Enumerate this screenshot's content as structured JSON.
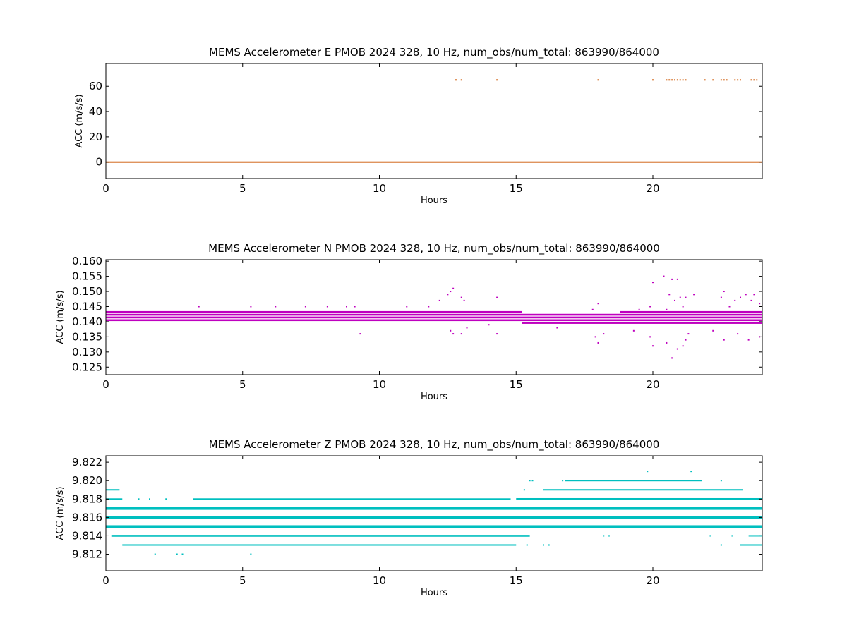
{
  "chart_data": [
    {
      "type": "scatter",
      "title": "MEMS Accelerometer E PMOB 2024 328, 10 Hz, num_obs/num_total: 863990/864000",
      "xlabel": "Hours",
      "ylabel": "ACC (m/s/s)",
      "xlim": [
        0,
        24
      ],
      "ylim": [
        -13,
        78
      ],
      "xticks": [
        0,
        5,
        10,
        15,
        20
      ],
      "yticks": [
        0,
        20,
        40,
        60
      ],
      "ytick_labels": [
        "0",
        "20",
        "40",
        "60"
      ],
      "color": "#d2691e",
      "grid": false,
      "bands": [
        {
          "y": 0,
          "x_start": 0,
          "x_end": 24,
          "thickness": 0.8
        }
      ],
      "points": [
        {
          "x": 12.8,
          "y": 65
        },
        {
          "x": 13.0,
          "y": 65
        },
        {
          "x": 14.3,
          "y": 65
        },
        {
          "x": 18.0,
          "y": 65
        },
        {
          "x": 20.0,
          "y": 65
        },
        {
          "x": 20.5,
          "y": 65
        },
        {
          "x": 20.6,
          "y": 65
        },
        {
          "x": 20.7,
          "y": 65
        },
        {
          "x": 20.8,
          "y": 65
        },
        {
          "x": 20.9,
          "y": 65
        },
        {
          "x": 21.0,
          "y": 65
        },
        {
          "x": 21.1,
          "y": 65
        },
        {
          "x": 21.2,
          "y": 65
        },
        {
          "x": 21.9,
          "y": 65
        },
        {
          "x": 22.2,
          "y": 65
        },
        {
          "x": 22.5,
          "y": 65
        },
        {
          "x": 22.6,
          "y": 65
        },
        {
          "x": 22.7,
          "y": 65
        },
        {
          "x": 23.0,
          "y": 65
        },
        {
          "x": 23.1,
          "y": 65
        },
        {
          "x": 23.2,
          "y": 65
        },
        {
          "x": 23.6,
          "y": 65
        },
        {
          "x": 23.7,
          "y": 65
        },
        {
          "x": 23.8,
          "y": 65
        },
        {
          "x": 24.0,
          "y": 65
        }
      ]
    },
    {
      "type": "scatter",
      "title": "MEMS Accelerometer N PMOB 2024 328, 10 Hz, num_obs/num_total: 863990/864000",
      "xlabel": "Hours",
      "ylabel": "ACC (m/s/s)",
      "xlim": [
        0,
        24
      ],
      "ylim": [
        0.1225,
        0.1605
      ],
      "xticks": [
        0,
        5,
        10,
        15,
        20
      ],
      "yticks": [
        0.125,
        0.13,
        0.135,
        0.14,
        0.145,
        0.15,
        0.155,
        0.16
      ],
      "ytick_labels": [
        "0.125",
        "0.130",
        "0.135",
        "0.140",
        "0.145",
        "0.150",
        "0.155",
        "0.160"
      ],
      "color": "#bf00bf",
      "grid": false,
      "bands": [
        {
          "y": 0.1405,
          "x_start": 0,
          "x_end": 15.2,
          "thickness": 0.0006
        },
        {
          "y": 0.1414,
          "x_start": 0,
          "x_end": 15.2,
          "thickness": 0.0006
        },
        {
          "y": 0.1423,
          "x_start": 0,
          "x_end": 15.2,
          "thickness": 0.0006
        },
        {
          "y": 0.1432,
          "x_start": 0,
          "x_end": 15.2,
          "thickness": 0.0006
        },
        {
          "y": 0.1396,
          "x_start": 15.2,
          "x_end": 24,
          "thickness": 0.0006
        },
        {
          "y": 0.1405,
          "x_start": 15.2,
          "x_end": 24,
          "thickness": 0.0006
        },
        {
          "y": 0.1414,
          "x_start": 15.2,
          "x_end": 24,
          "thickness": 0.0006
        },
        {
          "y": 0.1423,
          "x_start": 15.2,
          "x_end": 24,
          "thickness": 0.0006
        },
        {
          "y": 0.1432,
          "x_start": 18.8,
          "x_end": 24,
          "thickness": 0.0006
        }
      ],
      "points": [
        {
          "x": 3.4,
          "y": 0.145
        },
        {
          "x": 5.3,
          "y": 0.145
        },
        {
          "x": 6.2,
          "y": 0.145
        },
        {
          "x": 7.3,
          "y": 0.145
        },
        {
          "x": 8.1,
          "y": 0.145
        },
        {
          "x": 8.8,
          "y": 0.145
        },
        {
          "x": 9.1,
          "y": 0.145
        },
        {
          "x": 9.3,
          "y": 0.136
        },
        {
          "x": 11.0,
          "y": 0.145
        },
        {
          "x": 11.8,
          "y": 0.145
        },
        {
          "x": 12.2,
          "y": 0.147
        },
        {
          "x": 12.5,
          "y": 0.149
        },
        {
          "x": 12.6,
          "y": 0.15
        },
        {
          "x": 12.7,
          "y": 0.151
        },
        {
          "x": 12.6,
          "y": 0.137
        },
        {
          "x": 12.7,
          "y": 0.136
        },
        {
          "x": 13.0,
          "y": 0.148
        },
        {
          "x": 13.1,
          "y": 0.147
        },
        {
          "x": 13.2,
          "y": 0.138
        },
        {
          "x": 13.0,
          "y": 0.136
        },
        {
          "x": 14.3,
          "y": 0.148
        },
        {
          "x": 14.3,
          "y": 0.136
        },
        {
          "x": 14.0,
          "y": 0.139
        },
        {
          "x": 16.5,
          "y": 0.138
        },
        {
          "x": 17.8,
          "y": 0.144
        },
        {
          "x": 18.0,
          "y": 0.146
        },
        {
          "x": 18.0,
          "y": 0.133
        },
        {
          "x": 17.9,
          "y": 0.135
        },
        {
          "x": 18.2,
          "y": 0.136
        },
        {
          "x": 19.3,
          "y": 0.137
        },
        {
          "x": 19.5,
          "y": 0.144
        },
        {
          "x": 19.9,
          "y": 0.145
        },
        {
          "x": 19.9,
          "y": 0.135
        },
        {
          "x": 20.0,
          "y": 0.153
        },
        {
          "x": 20.0,
          "y": 0.132
        },
        {
          "x": 20.4,
          "y": 0.155
        },
        {
          "x": 20.5,
          "y": 0.144
        },
        {
          "x": 20.5,
          "y": 0.133
        },
        {
          "x": 20.6,
          "y": 0.149
        },
        {
          "x": 20.7,
          "y": 0.154
        },
        {
          "x": 20.7,
          "y": 0.128
        },
        {
          "x": 20.8,
          "y": 0.147
        },
        {
          "x": 20.9,
          "y": 0.154
        },
        {
          "x": 20.9,
          "y": 0.131
        },
        {
          "x": 21.0,
          "y": 0.148
        },
        {
          "x": 21.1,
          "y": 0.145
        },
        {
          "x": 21.1,
          "y": 0.132
        },
        {
          "x": 21.2,
          "y": 0.148
        },
        {
          "x": 21.2,
          "y": 0.134
        },
        {
          "x": 21.3,
          "y": 0.136
        },
        {
          "x": 21.5,
          "y": 0.149
        },
        {
          "x": 22.2,
          "y": 0.137
        },
        {
          "x": 22.5,
          "y": 0.148
        },
        {
          "x": 22.6,
          "y": 0.134
        },
        {
          "x": 22.6,
          "y": 0.15
        },
        {
          "x": 22.8,
          "y": 0.145
        },
        {
          "x": 23.0,
          "y": 0.147
        },
        {
          "x": 23.1,
          "y": 0.136
        },
        {
          "x": 23.2,
          "y": 0.148
        },
        {
          "x": 23.4,
          "y": 0.149
        },
        {
          "x": 23.5,
          "y": 0.134
        },
        {
          "x": 23.6,
          "y": 0.147
        },
        {
          "x": 23.7,
          "y": 0.149
        },
        {
          "x": 23.9,
          "y": 0.135
        },
        {
          "x": 23.9,
          "y": 0.146
        }
      ]
    },
    {
      "type": "scatter",
      "title": "MEMS Accelerometer Z PMOB 2024 328, 10 Hz, num_obs/num_total: 863990/864000",
      "xlabel": "Hours",
      "ylabel": "ACC (m/s/s)",
      "xlim": [
        0,
        24
      ],
      "ylim": [
        9.8102,
        9.8227
      ],
      "xticks": [
        0,
        5,
        10,
        15,
        20
      ],
      "yticks": [
        9.812,
        9.814,
        9.816,
        9.818,
        9.82,
        9.822
      ],
      "ytick_labels": [
        "9.812",
        "9.814",
        "9.816",
        "9.818",
        "9.820",
        "9.822"
      ],
      "color": "#00bfbf",
      "grid": false,
      "bands": [
        {
          "y": 9.813,
          "x_start": 0.6,
          "x_end": 15.0,
          "thickness": 0.00012
        },
        {
          "y": 9.814,
          "x_start": 0.2,
          "x_end": 15.5,
          "thickness": 0.0002
        },
        {
          "y": 9.815,
          "x_start": 0,
          "x_end": 24,
          "thickness": 0.0003
        },
        {
          "y": 9.816,
          "x_start": 0,
          "x_end": 24,
          "thickness": 0.00035
        },
        {
          "y": 9.817,
          "x_start": 0,
          "x_end": 24,
          "thickness": 0.00035
        },
        {
          "y": 9.818,
          "x_start": 0,
          "x_end": 0.6,
          "thickness": 0.00015
        },
        {
          "y": 9.818,
          "x_start": 3.2,
          "x_end": 14.8,
          "thickness": 0.0001
        },
        {
          "y": 9.818,
          "x_start": 15.0,
          "x_end": 24,
          "thickness": 0.0002
        },
        {
          "y": 9.819,
          "x_start": 0,
          "x_end": 0.5,
          "thickness": 0.00012
        },
        {
          "y": 9.819,
          "x_start": 16.0,
          "x_end": 23.3,
          "thickness": 0.00012
        },
        {
          "y": 9.82,
          "x_start": 16.8,
          "x_end": 21.8,
          "thickness": 0.0001
        },
        {
          "y": 9.813,
          "x_start": 23.2,
          "x_end": 24,
          "thickness": 0.00012
        },
        {
          "y": 9.814,
          "x_start": 23.5,
          "x_end": 24,
          "thickness": 0.00012
        }
      ],
      "points": [
        {
          "x": 1.8,
          "y": 9.812
        },
        {
          "x": 2.6,
          "y": 9.812
        },
        {
          "x": 2.8,
          "y": 9.812
        },
        {
          "x": 5.3,
          "y": 9.812
        },
        {
          "x": 1.2,
          "y": 9.818
        },
        {
          "x": 1.6,
          "y": 9.818
        },
        {
          "x": 2.2,
          "y": 9.818
        },
        {
          "x": 15.3,
          "y": 9.819
        },
        {
          "x": 15.5,
          "y": 9.82
        },
        {
          "x": 15.6,
          "y": 9.82
        },
        {
          "x": 16.7,
          "y": 9.82
        },
        {
          "x": 19.8,
          "y": 9.821
        },
        {
          "x": 21.4,
          "y": 9.821
        },
        {
          "x": 22.5,
          "y": 9.82
        },
        {
          "x": 15.4,
          "y": 9.813
        },
        {
          "x": 16.0,
          "y": 9.813
        },
        {
          "x": 16.2,
          "y": 9.813
        },
        {
          "x": 18.2,
          "y": 9.814
        },
        {
          "x": 18.4,
          "y": 9.814
        },
        {
          "x": 22.1,
          "y": 9.814
        },
        {
          "x": 22.5,
          "y": 9.813
        },
        {
          "x": 22.9,
          "y": 9.814
        }
      ]
    }
  ]
}
